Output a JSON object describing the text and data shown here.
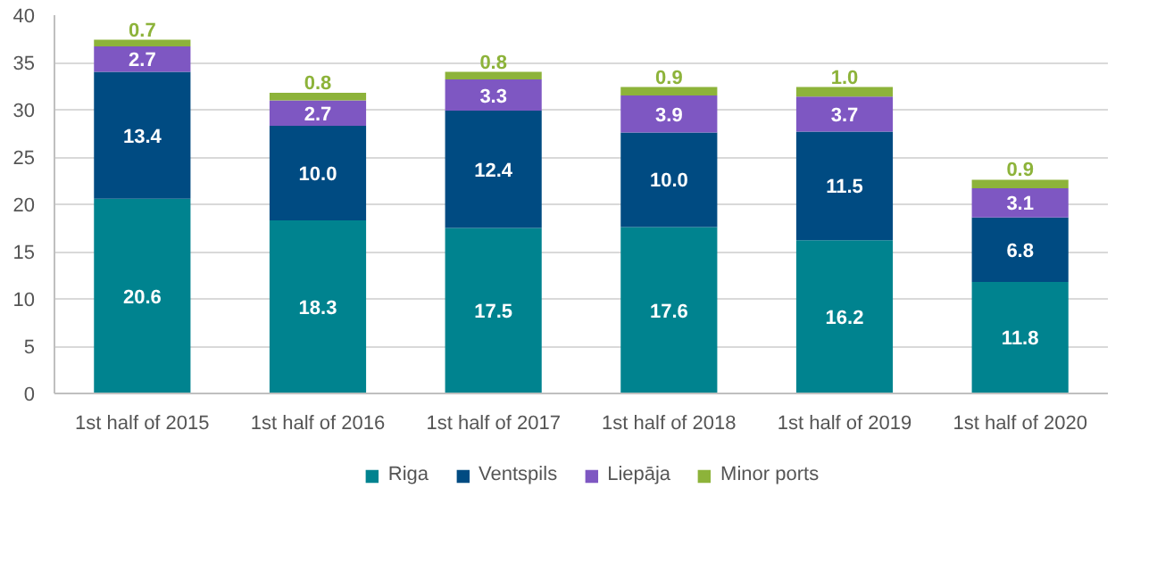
{
  "chart_data": {
    "type": "bar",
    "stacked": true,
    "categories": [
      "1st half of 2015",
      "1st half of 2016",
      "1st half of 2017",
      "1st half of 2018",
      "1st half of 2019",
      "1st half of 2020"
    ],
    "series": [
      {
        "name": "Riga",
        "color": "#00838f",
        "values": [
          20.6,
          18.3,
          17.5,
          17.6,
          16.2,
          11.8
        ],
        "value_labels": [
          "20.6",
          "18.3",
          "17.5",
          "17.6",
          "16.2",
          "11.8"
        ]
      },
      {
        "name": "Ventspils",
        "color": "#004b82",
        "values": [
          13.4,
          10,
          12.4,
          10,
          11.5,
          6.8
        ],
        "value_labels": [
          "13.4",
          "10.0",
          "12.4",
          "10.0",
          "11.5",
          "6.8"
        ]
      },
      {
        "name": "Liepāja",
        "color": "#7e57c2",
        "values": [
          2.7,
          2.7,
          3.3,
          3.9,
          3.7,
          3.1
        ],
        "value_labels": [
          "2.7",
          "2.7",
          "3.3",
          "3.9",
          "3.7",
          "3.1"
        ]
      },
      {
        "name": "Minor ports",
        "color": "#8db33a",
        "values": [
          0.7,
          0.8,
          0.8,
          0.9,
          1,
          0.9
        ],
        "value_labels": [
          "0.7",
          "0.8",
          "0.8",
          "0.9",
          "1.0",
          "0.9"
        ]
      }
    ],
    "ylim": [
      0,
      40
    ],
    "yticks": [
      0,
      5,
      10,
      15,
      20,
      25,
      30,
      35,
      40
    ],
    "grid": "y",
    "legend": "bottom"
  }
}
